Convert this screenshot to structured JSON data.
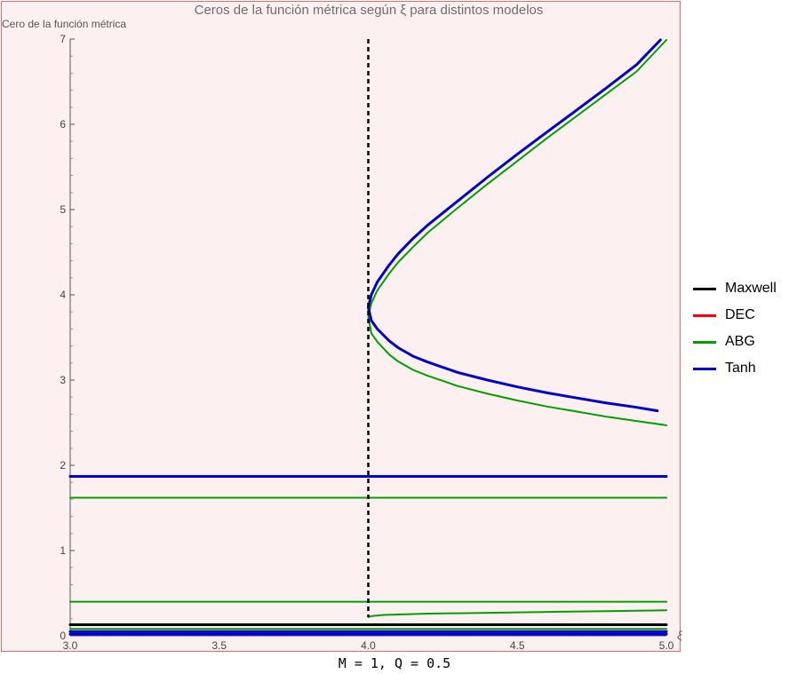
{
  "chart_data": {
    "type": "line",
    "title": "Ceros de la función métrica según ξ para distintos modelos",
    "ylabel": "Cero de la función métrica",
    "xlabel": "ξ",
    "xlim": [
      3.0,
      5.0
    ],
    "ylim": [
      0,
      7
    ],
    "xticks": [
      "3.0",
      "3.5",
      "4.0",
      "4.5",
      "5.0"
    ],
    "yticks": [
      "0",
      "1",
      "2",
      "3",
      "4",
      "5",
      "6",
      "7"
    ],
    "annotation": "M = 1, Q = 0.5",
    "vertical_line": {
      "x": 4.0,
      "style": "dashed",
      "color": "#000000"
    },
    "legend": [
      {
        "label": "Maxwell",
        "color": "#000000"
      },
      {
        "label": "DEC",
        "color": "#ff0000"
      },
      {
        "label": "ABG",
        "color": "#00a000"
      },
      {
        "label": "Tanh",
        "color": "#0000cc"
      }
    ],
    "series": [
      {
        "name": "Maxwell",
        "color": "#000000",
        "width": 3,
        "x": [
          3.0,
          5.0
        ],
        "y": [
          0.13,
          0.13
        ]
      },
      {
        "name": "Tanh",
        "color": "#0000cc",
        "width": 3,
        "x": [
          3.0,
          5.0
        ],
        "y": [
          1.87,
          1.87
        ]
      },
      {
        "name": "Tanh",
        "color": "#0000cc",
        "width": 3,
        "x": [
          3.0,
          5.0
        ],
        "y": [
          0.05,
          0.05
        ]
      },
      {
        "name": "Tanh",
        "color": "#0000cc",
        "width": 3,
        "x": [
          3.0,
          5.0
        ],
        "y": [
          0.02,
          0.02
        ]
      },
      {
        "name": "ABG",
        "color": "#00a000",
        "width": 2,
        "x": [
          3.0,
          5.0
        ],
        "y": [
          1.62,
          1.62
        ]
      },
      {
        "name": "ABG",
        "color": "#00a000",
        "width": 2,
        "x": [
          3.0,
          5.0
        ],
        "y": [
          0.4,
          0.4
        ]
      },
      {
        "name": "ABG",
        "color": "#00a000",
        "width": 2,
        "x": [
          3.0,
          5.0
        ],
        "y": [
          0.08,
          0.08
        ]
      },
      {
        "name": "ABG",
        "color": "#00a000",
        "width": 2,
        "x": [
          4.0,
          4.01,
          4.05,
          4.1,
          4.2,
          4.3,
          4.4,
          4.5,
          4.6,
          4.7,
          4.8,
          4.9,
          5.0
        ],
        "y": [
          0.22,
          0.23,
          0.245,
          0.25,
          0.26,
          0.265,
          0.27,
          0.275,
          0.28,
          0.285,
          0.29,
          0.295,
          0.3
        ]
      },
      {
        "name": "ABG",
        "color": "#00a000",
        "width": 2,
        "x": [
          4.0,
          4.01,
          4.03,
          4.07,
          4.1,
          4.15,
          4.2,
          4.3,
          4.4,
          4.5,
          4.6,
          4.7,
          4.8,
          4.9,
          5.0
        ],
        "y": [
          3.75,
          3.55,
          3.45,
          3.3,
          3.22,
          3.12,
          3.05,
          2.93,
          2.84,
          2.76,
          2.69,
          2.63,
          2.57,
          2.52,
          2.47
        ]
      },
      {
        "name": "ABG",
        "color": "#00a000",
        "width": 2,
        "x": [
          4.0,
          4.01,
          4.03,
          4.07,
          4.1,
          4.15,
          4.2,
          4.3,
          4.4,
          4.5,
          4.6,
          4.7,
          4.8,
          4.9,
          5.0
        ],
        "y": [
          3.75,
          3.9,
          4.05,
          4.25,
          4.38,
          4.56,
          4.73,
          5.02,
          5.3,
          5.57,
          5.84,
          6.1,
          6.36,
          6.62,
          6.99
        ]
      },
      {
        "name": "Tanh",
        "color": "#0000cc",
        "width": 3,
        "x": [
          4.0,
          4.01,
          4.03,
          4.07,
          4.1,
          4.15,
          4.2,
          4.3,
          4.4,
          4.5,
          4.6,
          4.7,
          4.8,
          4.9,
          4.97
        ],
        "y": [
          3.85,
          3.7,
          3.6,
          3.46,
          3.38,
          3.28,
          3.21,
          3.09,
          3.0,
          2.92,
          2.85,
          2.79,
          2.73,
          2.68,
          2.64
        ]
      },
      {
        "name": "Tanh",
        "color": "#0000cc",
        "width": 3,
        "x": [
          4.0,
          4.01,
          4.03,
          4.07,
          4.1,
          4.15,
          4.2,
          4.3,
          4.4,
          4.5,
          4.6,
          4.7,
          4.8,
          4.9,
          4.98
        ],
        "y": [
          3.85,
          4.0,
          4.15,
          4.35,
          4.48,
          4.66,
          4.82,
          5.1,
          5.38,
          5.65,
          5.91,
          6.17,
          6.43,
          6.7,
          6.99
        ]
      }
    ]
  }
}
